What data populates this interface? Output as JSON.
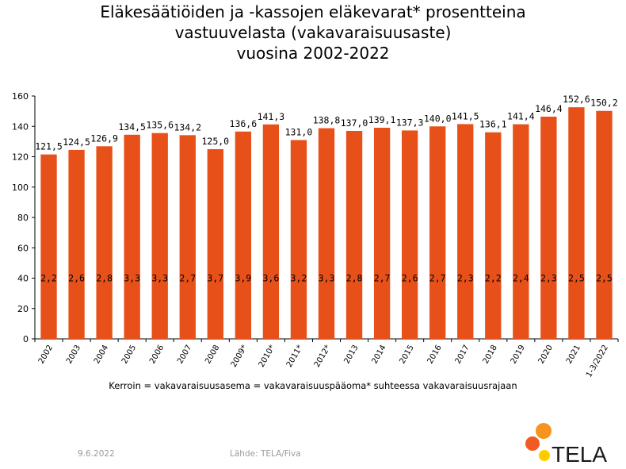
{
  "title_lines": [
    "Eläkesäätiöiden ja -kassojen eläkevarat* prosentteina",
    "vastuuvelasta (vakavaraisuusaste)",
    "vuosina 2002-2022"
  ],
  "note": "Kerroin = vakavaraisuusasema = vakavaraisuuspääoma* suhteessa vakavaraisuusrajaan",
  "footer": {
    "date": "9.6.2022",
    "source": "Lähde: TELA/Fiva"
  },
  "logo": {
    "text": "TELA",
    "colors": [
      "#f7941d",
      "#f15a24",
      "#ffcc00"
    ]
  },
  "chart_data": {
    "type": "bar",
    "categories": [
      "2002",
      "2003",
      "2004",
      "2005",
      "2006",
      "2007",
      "2008",
      "2009*",
      "2010*",
      "2011*",
      "2012*",
      "2013",
      "2014",
      "2015",
      "2016",
      "2017",
      "2018",
      "2019",
      "2020",
      "2021",
      "1-3/2022"
    ],
    "series": [
      {
        "values": [
          121.5,
          124.5,
          126.9,
          134.5,
          135.6,
          134.2,
          125.0,
          136.6,
          141.3,
          131.0,
          138.8,
          137.0,
          139.1,
          137.3,
          140.0,
          141.5,
          136.1,
          141.4,
          146.4,
          152.6,
          150.2
        ],
        "labels": [
          "121,5",
          "124,5",
          "126,9",
          "134,5",
          "135,6",
          "134,2",
          "125,0",
          "136,6",
          "141,3",
          "131,0",
          "138,8",
          "137,0",
          "139,1",
          "137,3",
          "140,0",
          "141,5",
          "136,1",
          "141,4",
          "146,4",
          "152,6",
          "150,2"
        ],
        "color": "#e8501a"
      },
      {
        "values": [
          2.2,
          2.6,
          2.8,
          3.3,
          3.3,
          2.7,
          3.7,
          3.9,
          3.6,
          3.2,
          3.3,
          2.8,
          2.7,
          2.6,
          2.7,
          2.3,
          2.2,
          2.4,
          2.3,
          2.5,
          2.5
        ],
        "labels": [
          "2,2",
          "2,6",
          "2,8",
          "3,3",
          "3,3",
          "2,7",
          "3,7",
          "3,9",
          "3,6",
          "3,2",
          "3,3",
          "2,8",
          "2,7",
          "2,6",
          "2,7",
          "2,3",
          "2,2",
          "2,4",
          "2,3",
          "2,5",
          "2,5"
        ]
      }
    ],
    "ylim": [
      0,
      160
    ],
    "yticks": [
      0,
      20,
      40,
      60,
      80,
      100,
      120,
      140,
      160
    ],
    "grid": false,
    "legend": "none"
  }
}
